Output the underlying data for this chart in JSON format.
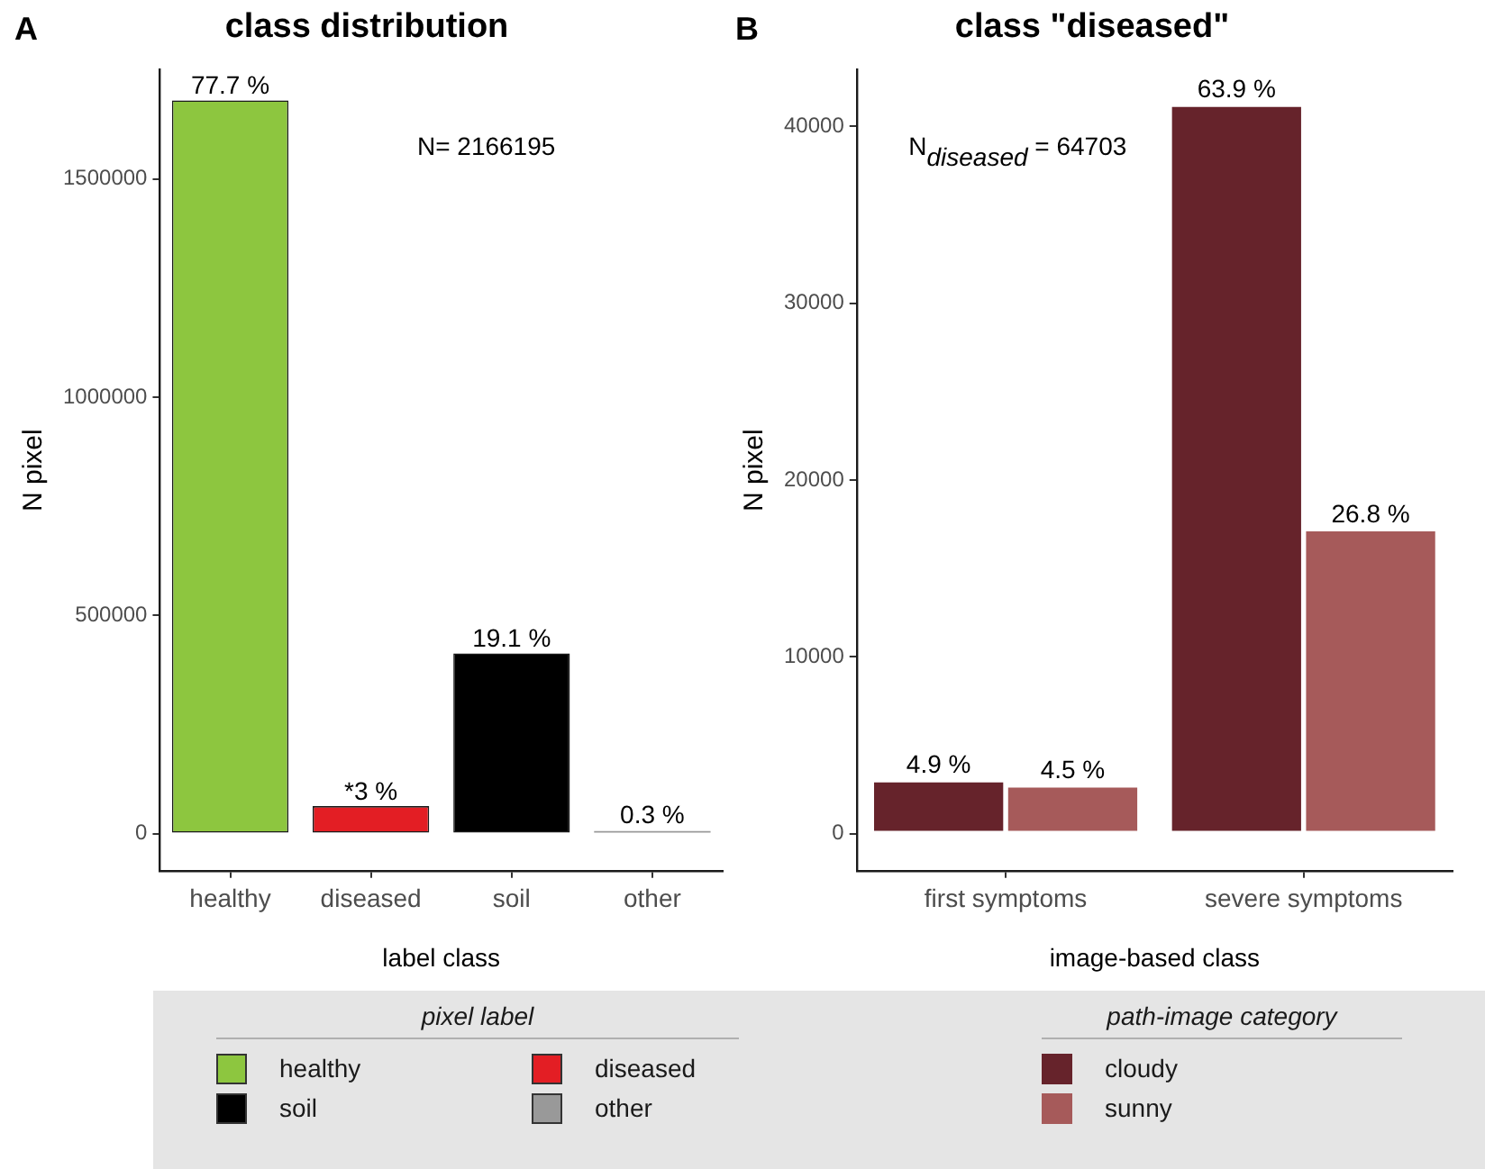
{
  "chart_data": [
    {
      "type": "bar",
      "title": "class distribution",
      "xlabel": "label class",
      "ylabel": "N pixel",
      "legend_title": "pixel label",
      "categories": [
        "healthy",
        "diseased",
        "soil",
        "other"
      ],
      "stacked": true,
      "series": [
        {
          "name": "healthy",
          "color": "#8dc63f",
          "values": [
            1680000,
            null,
            null,
            null
          ]
        },
        {
          "name": "diseased",
          "color": "#e31e24",
          "values": [
            null,
            63000,
            null,
            null
          ]
        },
        {
          "name": "soil",
          "color": "#000000",
          "values": [
            null,
            null,
            413000,
            null
          ]
        },
        {
          "name": "other",
          "color": "#999999",
          "values": [
            null,
            null,
            null,
            6000
          ]
        }
      ],
      "ylim": [
        -85000,
        1750000
      ],
      "yticks": [
        0,
        500000,
        1000000,
        1500000
      ],
      "grid": false,
      "legend": "bottom",
      "annotations": [
        "A",
        "N= 2166195",
        {
          "text": "77.7 %",
          "x": "healthy",
          "y": 1680000
        },
        {
          "text": "*3 %",
          "x": "diseased",
          "y": 63000
        },
        {
          "text": "19.1 %",
          "x": "soil",
          "y": 413000
        },
        {
          "text": "0.3 %",
          "x": "other",
          "y": 6000
        }
      ]
    },
    {
      "type": "bar",
      "title": "class \"diseased\"",
      "xlabel": "image-based class",
      "ylabel": "N pixel",
      "legend_title": "path-image category",
      "categories": [
        "first symptoms",
        "severe symptoms"
      ],
      "series": [
        {
          "name": "cloudy",
          "color": "#66232b",
          "values": [
            3000,
            41200
          ]
        },
        {
          "name": "sunny",
          "color": "#a65a5a",
          "values": [
            2700,
            17200
          ]
        }
      ],
      "ylim": [
        -2100,
        43200
      ],
      "yticks": [
        0,
        10000,
        20000,
        30000,
        40000
      ],
      "grid": false,
      "legend": "bottom",
      "annotations": [
        "B",
        "N$_{diseased}$ = 64703",
        {
          "text": "4.9 %",
          "x": "first symptoms",
          "y": 3000
        },
        {
          "text": "4.5 %",
          "x": "first symptoms",
          "y": 2700
        },
        {
          "text": "63.9 %",
          "x": "severe symptoms",
          "y": 41200
        },
        {
          "text": "26.8 %",
          "x": "severe symptoms",
          "y": 17200
        }
      ]
    }
  ]
}
